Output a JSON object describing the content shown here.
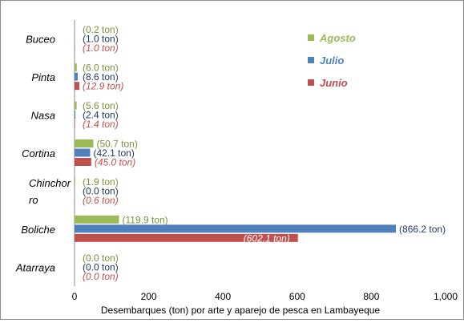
{
  "chart_data": {
    "type": "bar",
    "orientation": "horizontal",
    "categories": [
      "Buceo",
      "Pinta",
      "Nasa",
      "Cortina",
      "Chinchor\nro",
      "Boliche",
      "Atarraya"
    ],
    "series": [
      {
        "name": "Agosto",
        "color": "#9bbb59",
        "label_color": "#77933c",
        "label_italic": false,
        "values": [
          0.2,
          6.0,
          5.6,
          50.7,
          1.9,
          119.9,
          0.0
        ],
        "labels": [
          "(0.2 ton)",
          "(6.0 ton)",
          "(5.6 ton)",
          "(50.7 ton)",
          "(1.9 ton)",
          "(119.9 ton)",
          "(0.0 ton)"
        ]
      },
      {
        "name": "Julio",
        "color": "#4f81bd",
        "label_color": "#1f3864",
        "label_italic": false,
        "values": [
          1.0,
          8.6,
          2.4,
          42.1,
          0.0,
          866.2,
          0.0
        ],
        "labels": [
          "(1.0 ton)",
          "(8.6 ton)",
          "(2.4 ton)",
          "(42.1 ton)",
          "(0.0 ton)",
          "(866.2 ton)",
          "(0.0 ton)"
        ]
      },
      {
        "name": "Junio",
        "color": "#c0504d",
        "label_color": "#c0504d",
        "label_italic": true,
        "values": [
          1.0,
          12.9,
          1.4,
          45.0,
          0.6,
          602.1,
          0.0
        ],
        "labels": [
          "(1.0 ton)",
          "(12.9 ton)",
          "(1.4 ton)",
          "(45.0 ton)",
          "(0.6 ton)",
          "(602.1 ton)",
          "(0.0 ton)"
        ]
      }
    ],
    "xlabel": "Desembarques (ton) por arte y aparejo de pesca en Lambayeque",
    "ylabel": "",
    "xlim": [
      0,
      1000
    ],
    "xticks": [
      0,
      200,
      400,
      600,
      800,
      1000
    ],
    "xtick_labels": [
      "0",
      "200",
      "400",
      "600",
      "800",
      "1,000"
    ],
    "grid": false,
    "legend_position": "top-right",
    "legend_order": [
      "Agosto",
      "Julio",
      "Junio"
    ]
  }
}
